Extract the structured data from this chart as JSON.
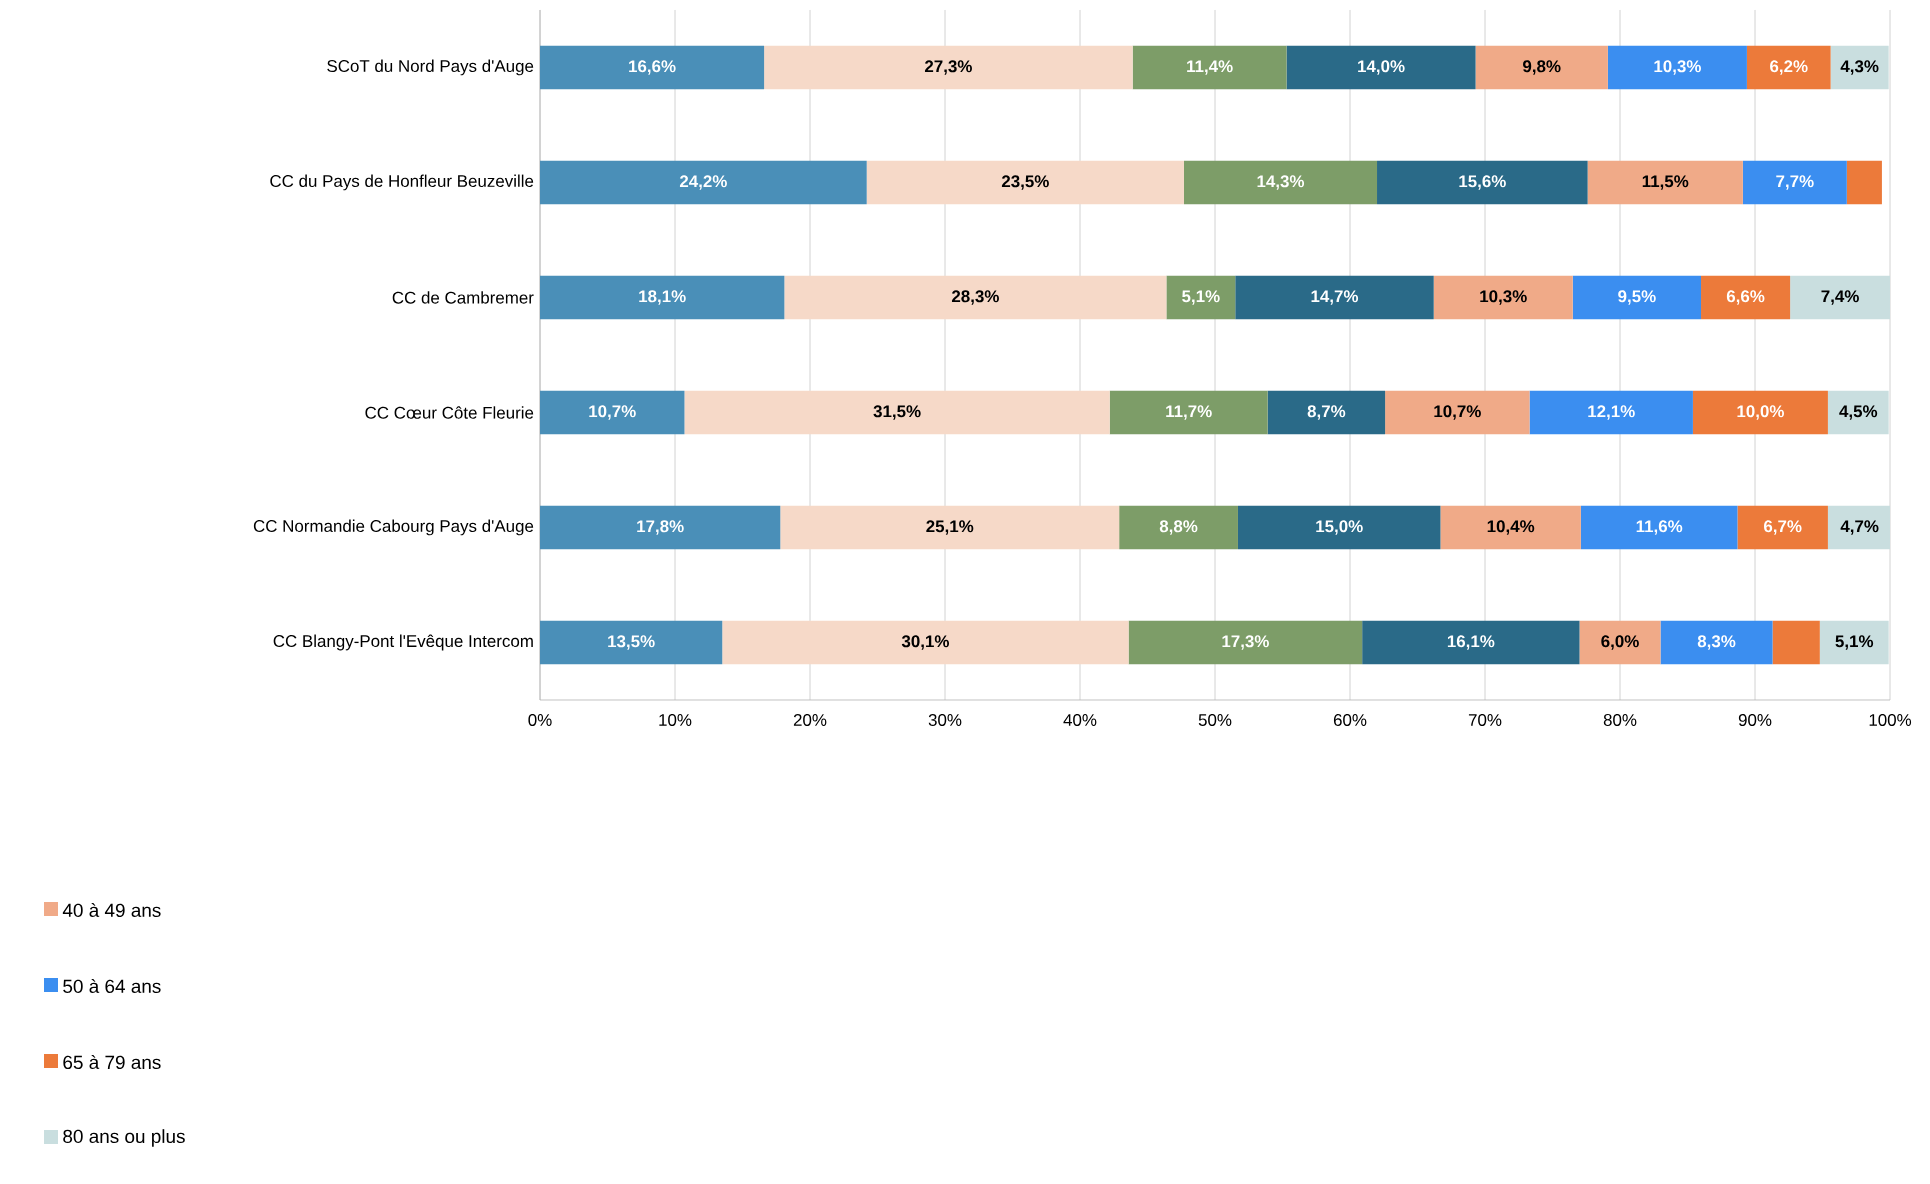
{
  "chart_data": {
    "type": "bar",
    "orientation": "horizontal",
    "stacked": true,
    "grid": "x",
    "legend": "bottom left",
    "categories": [
      "SCoT du Nord Pays d'Auge",
      "CC du Pays de Honfleur Beuzeville",
      "CC de Cambremer",
      "CC Cœur Côte Fleurie",
      "CC Normandie Cabourg Pays d'Auge",
      "CC Blangy-Pont l'Evêque Intercom"
    ],
    "xlim": [
      0,
      100
    ],
    "xticks": [
      {
        "value": 0,
        "label": "0%"
      },
      {
        "value": 10,
        "label": "10%"
      },
      {
        "value": 20,
        "label": "20%"
      },
      {
        "value": 30,
        "label": "30%"
      },
      {
        "value": 40,
        "label": "40%"
      },
      {
        "value": 50,
        "label": "50%"
      },
      {
        "value": 60,
        "label": "60%"
      },
      {
        "value": 70,
        "label": "70%"
      },
      {
        "value": 80,
        "label": "80%"
      },
      {
        "value": 90,
        "label": "90%"
      },
      {
        "value": 100,
        "label": "100%"
      }
    ],
    "series": [
      {
        "color": "#4a8fb8",
        "values": [
          16.6,
          24.2,
          18.1,
          10.7,
          17.8,
          13.5
        ],
        "value_labels": [
          "16,6%",
          "24,2%",
          "18,1%",
          "10,7%",
          "17,8%",
          "13,5%"
        ]
      },
      {
        "color": "#f6d9c8",
        "values": [
          27.3,
          23.5,
          28.3,
          31.5,
          25.1,
          30.1
        ],
        "value_labels": [
          "27,3%",
          "23,5%",
          "28,3%",
          "31,5%",
          "25,1%",
          "30,1%"
        ]
      },
      {
        "color": "#7d9d68",
        "values": [
          11.4,
          14.3,
          5.1,
          11.7,
          8.8,
          17.3
        ],
        "value_labels": [
          "11,4%",
          "14,3%",
          "5,1%",
          "11,7%",
          "8,8%",
          "17,3%"
        ]
      },
      {
        "color": "#2a6a88",
        "values": [
          14.0,
          15.6,
          14.7,
          8.7,
          15.0,
          16.1
        ],
        "value_labels": [
          "14,0%",
          "15,6%",
          "14,7%",
          "8,7%",
          "15,0%",
          "16,1%"
        ]
      },
      {
        "name": "40 à 49 ans",
        "color": "#f0aa88",
        "values": [
          9.8,
          11.5,
          10.3,
          10.7,
          10.4,
          6.0
        ],
        "value_labels": [
          "9,8%",
          "11,5%",
          "10,3%",
          "10,7%",
          "10,4%",
          "6,0%"
        ]
      },
      {
        "name": "50 à 64 ans",
        "color": "#3b8ef0",
        "values": [
          10.3,
          7.7,
          9.5,
          12.1,
          11.6,
          8.3
        ],
        "value_labels": [
          "10,3%",
          "7,7%",
          "9,5%",
          "12,1%",
          "11,6%",
          "8,3%"
        ]
      },
      {
        "name": "65 à 79 ans",
        "color": "#ec7a3a",
        "values": [
          6.2,
          2.6,
          6.6,
          10.0,
          6.7,
          3.5
        ],
        "value_labels": [
          "6,2%",
          null,
          "6,6%",
          "10,0%",
          "6,7%",
          null
        ]
      },
      {
        "name": "80 ans ou plus",
        "color": "#c9dedf",
        "values": [
          4.3,
          null,
          7.4,
          4.5,
          4.7,
          5.1
        ],
        "value_labels": [
          "4,3%",
          null,
          "7,4%",
          "4,5%",
          "4,7%",
          "5,1%"
        ]
      }
    ]
  }
}
